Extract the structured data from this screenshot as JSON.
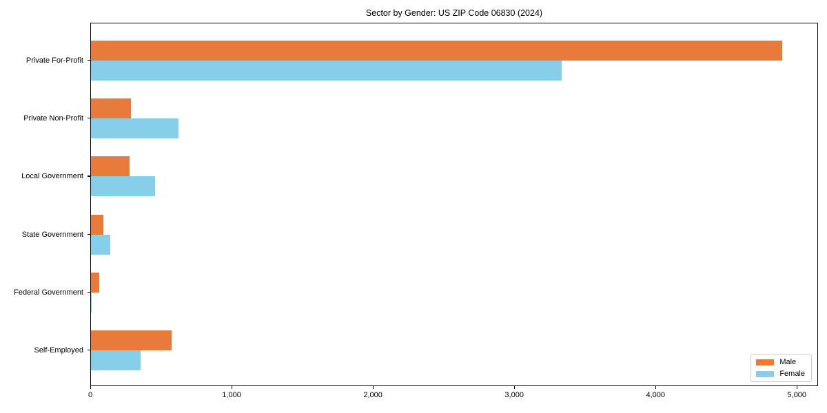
{
  "title": "Sector by Gender: US ZIP Code 06830 (2024)",
  "chart_data": {
    "type": "bar",
    "orientation": "horizontal",
    "title": "Sector by Gender: US ZIP Code 06830 (2024)",
    "xlabel": "",
    "ylabel": "",
    "categories": [
      "Private For-Profit",
      "Private Non-Profit",
      "Local Government",
      "State Government",
      "Federal Government",
      "Self-Employed"
    ],
    "series": [
      {
        "name": "Male",
        "color": "#e87a3b",
        "values": [
          4890,
          285,
          275,
          90,
          60,
          570
        ]
      },
      {
        "name": "Female",
        "color": "#87ceeb",
        "values": [
          3330,
          620,
          455,
          135,
          6,
          350
        ]
      }
    ],
    "xlim": [
      0,
      5140
    ],
    "x_ticks": [
      0,
      1000,
      2000,
      3000,
      4000,
      5000
    ],
    "x_tick_labels": [
      "0",
      "1,000",
      "2,000",
      "3,000",
      "4,000",
      "5,000"
    ],
    "grid": false,
    "legend_position": "lower right"
  },
  "legend": {
    "items": [
      {
        "label": "Male",
        "color": "#e87a3b"
      },
      {
        "label": "Female",
        "color": "#87ceeb"
      }
    ]
  }
}
